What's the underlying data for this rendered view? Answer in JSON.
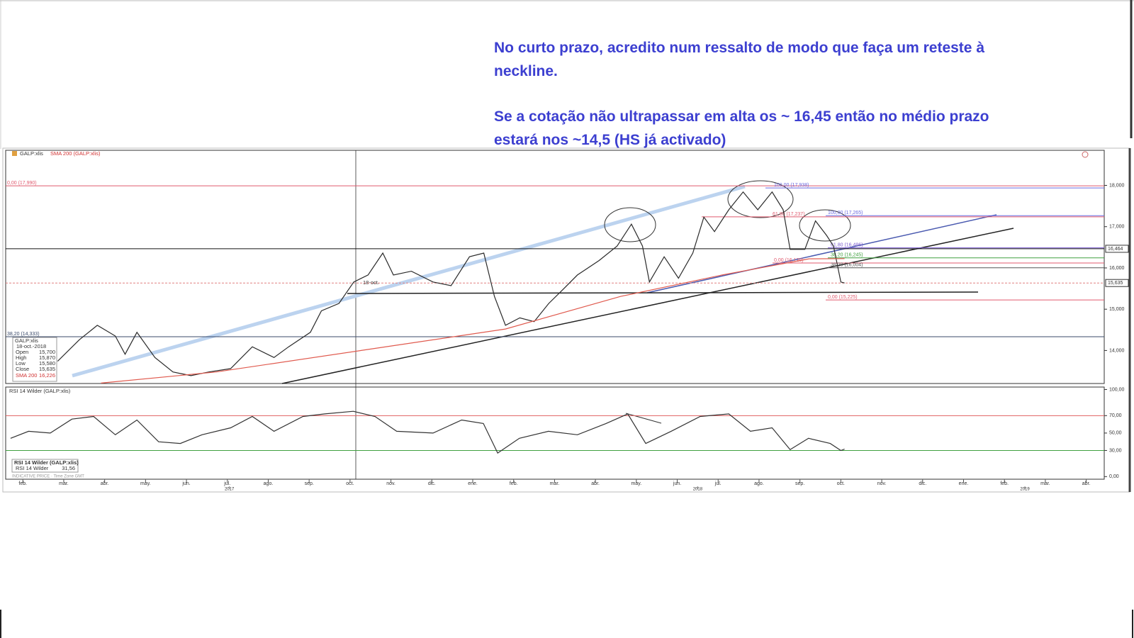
{
  "annotation": {
    "paragraphs": [
      [
        "No curto prazo, acredito num ressalto de modo que faça um reteste à",
        "neckline."
      ],
      [
        "Se a cotação não ultrapassar em alta os ~ 16,45 então no médio prazo",
        "estará nos ~14,5 (HS já activado)"
      ]
    ]
  },
  "toolbar": {
    "symbol": "GALP:xlis",
    "indicator": "SMA 200 (GALP:xlis)"
  },
  "info_box": {
    "date": "18-oct.-2018",
    "rows": [
      [
        "Open",
        "15,700"
      ],
      [
        "High",
        "15,870"
      ],
      [
        "Low",
        "15,580"
      ],
      [
        "Close",
        "15,635"
      ]
    ],
    "sma_value": "16,226"
  },
  "crosshair_label": "18-oct.",
  "footer": "INDICATIVE PRICE · Time Zone GMT",
  "chart_data": [
    {
      "type": "line",
      "xlim": [
        -0.42,
        26.44
      ],
      "ylim": [
        13.2,
        18.85
      ],
      "xticks": [
        {
          "value": 0,
          "label": "feb."
        },
        {
          "value": 1,
          "label": "mar."
        },
        {
          "value": 2,
          "label": "abr."
        },
        {
          "value": 3,
          "label": "may."
        },
        {
          "value": 4,
          "label": "jun."
        },
        {
          "value": 5,
          "label": "jul."
        },
        {
          "value": 6,
          "label": "ago."
        },
        {
          "value": 7,
          "label": "sep."
        },
        {
          "value": 8,
          "label": "oct."
        },
        {
          "value": 9,
          "label": "nov."
        },
        {
          "value": 10,
          "label": "dic."
        },
        {
          "value": 11,
          "label": "ene."
        },
        {
          "value": 12,
          "label": "feb."
        },
        {
          "value": 13,
          "label": "mar."
        },
        {
          "value": 14,
          "label": "abr."
        },
        {
          "value": 15,
          "label": "may."
        },
        {
          "value": 16,
          "label": "jun."
        },
        {
          "value": 17,
          "label": "jul."
        },
        {
          "value": 18,
          "label": "ago."
        },
        {
          "value": 19,
          "label": "sep."
        },
        {
          "value": 20,
          "label": "oct."
        },
        {
          "value": 21,
          "label": "nov."
        },
        {
          "value": 22,
          "label": "dic."
        },
        {
          "value": 23,
          "label": "ene."
        },
        {
          "value": 24,
          "label": "feb."
        },
        {
          "value": 25,
          "label": "mar."
        },
        {
          "value": 26,
          "label": "abr."
        }
      ],
      "year_labels": [
        {
          "value": 5.05,
          "label": "2017"
        },
        {
          "value": 16.5,
          "label": "2018"
        },
        {
          "value": 24.5,
          "label": "2019"
        }
      ],
      "yticks": [
        {
          "value": 14,
          "label": "14,000"
        },
        {
          "value": 15,
          "label": "15,000"
        },
        {
          "value": 16,
          "label": "16,000"
        },
        {
          "value": 17,
          "label": "17,000"
        },
        {
          "value": 18,
          "label": "18,000"
        }
      ],
      "series": [
        {
          "name": "GALP:xlis",
          "color": "#2a2a2a",
          "x": [
            0.85,
            1.38,
            1.82,
            2.26,
            2.5,
            2.79,
            3.23,
            3.67,
            4.11,
            4.55,
            5.08,
            5.61,
            6.14,
            6.5,
            7.03,
            7.3,
            7.73,
            8.09,
            8.44,
            8.8,
            9.06,
            9.5,
            10.03,
            10.47,
            10.92,
            11.27,
            11.53,
            11.8,
            12.15,
            12.5,
            12.86,
            13.21,
            13.56,
            14.09,
            14.53,
            14.88,
            15.15,
            15.32,
            15.68,
            16.03,
            16.38,
            16.65,
            16.91,
            17.26,
            17.61,
            17.97,
            18.32,
            18.59,
            18.76,
            19.12,
            19.38,
            19.65,
            19.82,
            20.0,
            20.09
          ],
          "values": [
            13.74,
            14.26,
            14.61,
            14.35,
            13.91,
            14.44,
            13.83,
            13.48,
            13.39,
            13.48,
            13.56,
            14.09,
            13.83,
            14.09,
            14.44,
            14.96,
            15.14,
            15.66,
            15.83,
            16.36,
            15.83,
            15.92,
            15.66,
            15.57,
            16.27,
            16.36,
            15.31,
            14.61,
            14.79,
            14.7,
            15.14,
            15.48,
            15.83,
            16.18,
            16.53,
            17.06,
            16.53,
            15.66,
            16.27,
            15.75,
            16.36,
            17.23,
            16.88,
            17.41,
            17.84,
            17.41,
            17.84,
            17.41,
            16.45,
            16.45,
            17.14,
            16.79,
            16.53,
            15.66,
            15.635
          ]
        },
        {
          "name": "SMA 200",
          "color": "#e05a4e",
          "x": [
            1.91,
            4.73,
            8.27,
            11.8,
            14.62,
            17.1,
            19.22,
            20.09
          ],
          "values": [
            13.21,
            13.48,
            14.0,
            14.52,
            15.31,
            15.83,
            16.22,
            16.226
          ]
        }
      ],
      "levels": [
        {
          "value": 17.99,
          "label": "0,00 (17,990)",
          "color": "#e05a6e"
        },
        {
          "value": 17.938,
          "label": "100,00 (17,938)",
          "color": "#6a6ae0"
        },
        {
          "value": 17.237,
          "label": "61,80 (17,237)",
          "color": "#e05a6e"
        },
        {
          "value": 17.265,
          "label": "100,00 (17,265)",
          "color": "#6a6ae0"
        },
        {
          "value": 16.486,
          "label": "61,80 (16,486)",
          "color": "#7a5ad0"
        },
        {
          "value": 16.245,
          "label": "38,20 (16,245)",
          "color": "#40a040"
        },
        {
          "value": 16.12,
          "label": "0,00 (16,120)",
          "color": "#e05a6e"
        },
        {
          "value": 16.004,
          "label": "38,20 (16,004)",
          "color": "#555555"
        },
        {
          "value": 15.225,
          "label": "0,00 (15,225)",
          "color": "#e05a6e"
        },
        {
          "value": 14.333,
          "label": "38,20 (14,333)",
          "color": "#3a4a6a"
        }
      ],
      "price_markers": [
        {
          "value": 16.464,
          "label": "16,464"
        },
        {
          "value": 15.635,
          "label": "15,635"
        }
      ]
    },
    {
      "type": "line",
      "title": "RSI 14 Wilder (GALP:xlis)",
      "xlim": [
        -0.42,
        26.44
      ],
      "ylim": [
        -3,
        102
      ],
      "yticks": [
        {
          "value": 0,
          "label": "0,00"
        },
        {
          "value": 30,
          "label": "30,00"
        },
        {
          "value": 50,
          "label": "50,00"
        },
        {
          "value": 70,
          "label": "70,00"
        },
        {
          "value": 100,
          "label": "100,00"
        }
      ],
      "levels": [
        {
          "value": 70,
          "color": "#e06060"
        },
        {
          "value": 30,
          "color": "#40a040"
        }
      ],
      "series": [
        {
          "name": "RSI 14 Wilder",
          "color": "#333333",
          "x": [
            -0.3,
            0.14,
            0.67,
            1.2,
            1.73,
            2.26,
            2.79,
            3.32,
            3.85,
            4.38,
            5.08,
            5.61,
            6.14,
            6.85,
            7.38,
            8.08,
            8.61,
            9.14,
            10.03,
            10.73,
            11.26,
            11.61,
            12.14,
            12.85,
            13.56,
            14.26,
            14.79,
            15.23,
            15.85,
            16.56,
            17.26,
            17.79,
            18.32,
            18.76,
            19.21,
            19.74,
            20.0,
            20.09
          ],
          "values": [
            44,
            52,
            50,
            66,
            69,
            48,
            65,
            40,
            38,
            48,
            56,
            69,
            52,
            69,
            72,
            75,
            69,
            52,
            50,
            65,
            61,
            27,
            44,
            52,
            48,
            61,
            72,
            38,
            52,
            69,
            72,
            52,
            56,
            31,
            44,
            38,
            30,
            31.56
          ]
        }
      ],
      "legend_value": {
        "value": 31.56,
        "label": "31,56"
      }
    }
  ]
}
